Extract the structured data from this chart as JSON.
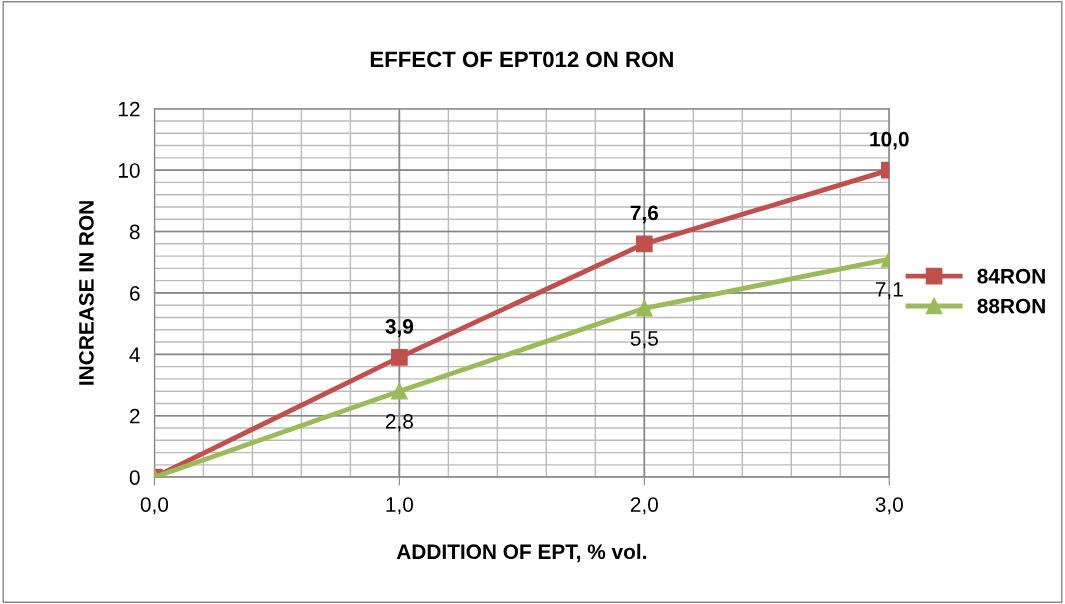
{
  "chart_data": {
    "type": "line",
    "title": "EFFECT OF EPT012 ON RON",
    "xlabel": "ADDITION OF EPT, % vol.",
    "ylabel": "INCREASE IN RON",
    "x": [
      0,
      1,
      2,
      3
    ],
    "series": [
      {
        "name": "84RON",
        "color": "#c0504d",
        "marker": "square",
        "values": [
          0,
          3.9,
          7.6,
          10.0
        ],
        "value_labels": [
          null,
          "3,9",
          "7,6",
          "10,0"
        ]
      },
      {
        "name": "88RON",
        "color": "#9bbb59",
        "marker": "triangle",
        "values": [
          0,
          2.8,
          5.5,
          7.1
        ],
        "value_labels": [
          null,
          "2,8",
          "5,5",
          "7,1"
        ]
      }
    ],
    "xlim": [
      0,
      3
    ],
    "xticks": [
      {
        "value": 0,
        "label": "0,0"
      },
      {
        "value": 1,
        "label": "1,0"
      },
      {
        "value": 2,
        "label": "2,0"
      },
      {
        "value": 3,
        "label": "3,0"
      }
    ],
    "ylim": [
      0,
      12
    ],
    "yticks": [
      0,
      2,
      4,
      6,
      8,
      10,
      12
    ],
    "grid": true,
    "legend": "right",
    "line_style": "solid"
  }
}
